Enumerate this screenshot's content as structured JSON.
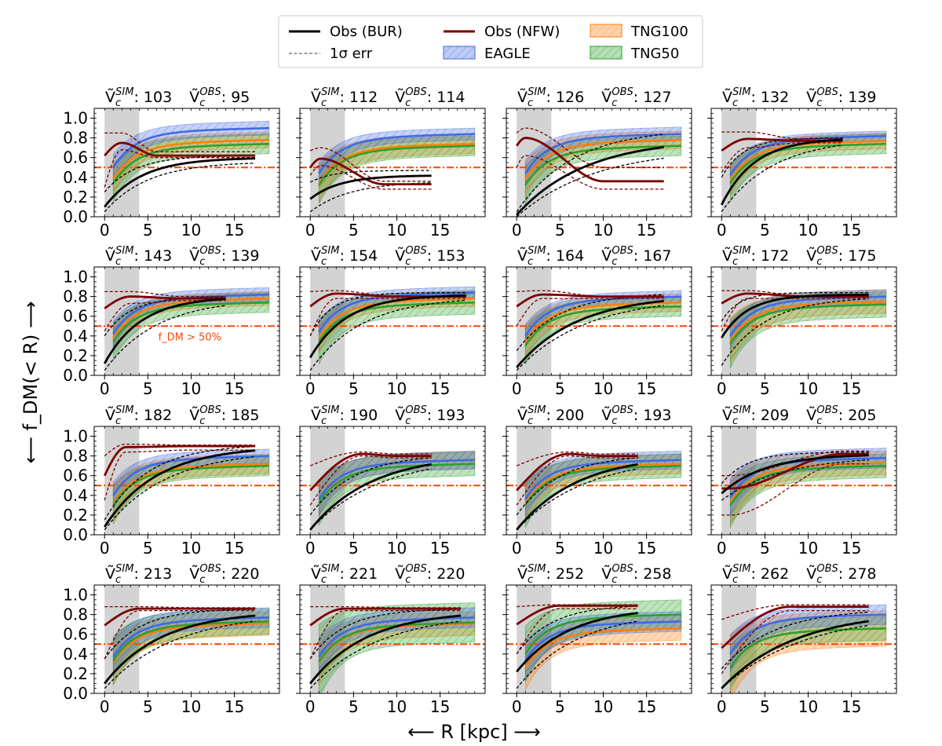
{
  "chart_data": {
    "type": "line",
    "figure": {
      "xlabel": "⟵  R [kpc]  ⟶",
      "ylabel": "⟵  f_DM(< R)  ⟶",
      "xlim": [
        -1.2,
        20.2
      ],
      "ylim": [
        0.0,
        1.1
      ],
      "xticks": [
        0,
        5,
        10,
        15
      ],
      "yticks": [
        0.0,
        0.2,
        0.4,
        0.6,
        0.8,
        1.0
      ],
      "ytick_labels": [
        "0.0",
        "0.2",
        "0.4",
        "0.6",
        "0.8",
        "1.0"
      ],
      "shaded_region_kpc": [
        0,
        4
      ],
      "threshold_line": 0.5,
      "threshold_annotation": "f_DM > 50%",
      "title_labels": {
        "sim": "Ṽc^SIM",
        "obs": "Ṽc^OBS"
      }
    },
    "legend": [
      {
        "key": "obs_bur",
        "label": "Obs (BUR)",
        "style": "line",
        "color": "#000000"
      },
      {
        "key": "obs_nfw",
        "label": "Obs (NFW)",
        "style": "line",
        "color": "#7b0000"
      },
      {
        "key": "tng100",
        "label": "TNG100",
        "style": "band",
        "color": "#ff7f0e"
      },
      {
        "key": "err",
        "label": "1σ err",
        "style": "dashed",
        "color": "#666666"
      },
      {
        "key": "eagle",
        "label": "EAGLE",
        "style": "band",
        "color": "#4169e1"
      },
      {
        "key": "tng50",
        "label": "TNG50",
        "style": "band",
        "color": "#2ca02c"
      }
    ],
    "colors": {
      "eagle": "#4169e1",
      "tng100": "#ff7f0e",
      "tng50": "#2ca02c",
      "obs_bur": "#000000",
      "obs_nfw": "#7b0000",
      "threshold": "#ff4500",
      "shade": "#d3d3d3"
    },
    "panels": [
      {
        "vsim": ": 103",
        "vobs": ": 95",
        "xmax": 17.5,
        "bur": [
          0.1,
          0.1,
          0.6,
          4.3
        ],
        "nfw": [
          0.62,
          0.05,
          0.75,
          2.0,
          0.62,
          6.0
        ],
        "bur_err": [
          [
            0.05,
            0.05,
            0.56,
            5.0
          ],
          [
            0.25,
            0.3,
            0.62,
            3.5
          ]
        ],
        "nfw_err": [
          [
            0.3,
            0.05,
            0.68,
            2.0,
            0.6,
            6.0
          ],
          [
            0.85,
            0.05,
            0.85,
            2.0,
            0.66,
            6.0
          ]
        ],
        "eagle": [
          0.9,
          0.07
        ],
        "tng100": [
          0.78,
          0.08
        ],
        "tng50": [
          0.74,
          0.1
        ]
      },
      {
        "vsim": ": 112",
        "vobs": ": 114",
        "xmax": 14.0,
        "bur": [
          0.18,
          0.18,
          0.42,
          3.4
        ],
        "nfw": [
          0.5,
          0.1,
          0.59,
          1.2,
          0.33,
          8.5
        ],
        "bur_err": [
          [
            0.05,
            0.05,
            0.36,
            4.6
          ],
          [
            0.35,
            0.35,
            0.47,
            2.5
          ]
        ],
        "nfw_err": [
          [
            0.42,
            0.1,
            0.52,
            1.2,
            0.28,
            8.5
          ],
          [
            0.67,
            0.1,
            0.7,
            1.2,
            0.36,
            8.5
          ]
        ],
        "eagle": [
          0.84,
          0.06
        ],
        "tng100": [
          0.74,
          0.1
        ],
        "tng50": [
          0.72,
          0.1
        ]
      },
      {
        "vsim": ": 126",
        "vobs": ": 127",
        "xmax": 17.0,
        "bur": [
          0.02,
          0.02,
          0.8,
          8.0
        ],
        "nfw": [
          0.72,
          0.05,
          0.8,
          1.0,
          0.36,
          10.0
        ],
        "bur_err": [
          [
            0.0,
            0.0,
            0.7,
            9.0
          ],
          [
            0.05,
            0.05,
            0.9,
            6.5
          ]
        ],
        "nfw_err": [
          [
            0.5,
            0.05,
            0.62,
            1.0,
            0.28,
            10.0
          ],
          [
            0.85,
            0.05,
            0.9,
            1.0,
            0.5,
            10.0
          ]
        ],
        "eagle": [
          0.84,
          0.07
        ],
        "tng100": [
          0.78,
          0.09
        ],
        "tng50": [
          0.72,
          0.1
        ]
      },
      {
        "vsim": ": 132",
        "vobs": ": 139",
        "xmax": 14.0,
        "bur": [
          0.12,
          0.12,
          0.8,
          3.8
        ],
        "nfw": [
          0.67,
          0.05,
          0.79,
          3.0,
          0.77,
          9.0
        ],
        "bur_err": [
          [
            0.05,
            0.05,
            0.8,
            6.0
          ],
          [
            0.4,
            0.4,
            0.8,
            2.5
          ]
        ],
        "nfw_err": [
          [
            0.45,
            0.05,
            0.7,
            3.0,
            0.75,
            9.0
          ],
          [
            0.86,
            0.05,
            0.86,
            3.0,
            0.79,
            9.0
          ]
        ],
        "eagle": [
          0.82,
          0.05
        ],
        "tng100": [
          0.77,
          0.08
        ],
        "tng50": [
          0.74,
          0.1
        ]
      },
      {
        "vsim": ": 143",
        "vobs": ": 139",
        "xmax": 14.0,
        "bur": [
          0.12,
          0.12,
          0.8,
          4.2
        ],
        "nfw": [
          0.68,
          0.05,
          0.8,
          3.0,
          0.78,
          9.0
        ],
        "bur_err": [
          [
            0.05,
            0.05,
            0.78,
            6.0
          ],
          [
            0.4,
            0.4,
            0.8,
            3.0
          ]
        ],
        "nfw_err": [
          [
            0.45,
            0.05,
            0.73,
            3.0,
            0.76,
            9.0
          ],
          [
            0.85,
            0.05,
            0.85,
            3.0,
            0.8,
            9.0
          ]
        ],
        "eagle": [
          0.82,
          0.07
        ],
        "tng100": [
          0.78,
          0.07
        ],
        "tng50": [
          0.74,
          0.1
        ],
        "annotate": true
      },
      {
        "vsim": ": 154",
        "vobs": ": 153",
        "xmax": 18.0,
        "bur": [
          0.18,
          0.18,
          0.82,
          4.2
        ],
        "nfw": [
          0.7,
          0.05,
          0.83,
          3.0,
          0.8,
          10.0
        ],
        "bur_err": [
          [
            0.05,
            0.05,
            0.8,
            6.0
          ],
          [
            0.4,
            0.4,
            0.84,
            2.5
          ]
        ],
        "nfw_err": [
          [
            0.4,
            0.05,
            0.78,
            3.0,
            0.78,
            10.0
          ],
          [
            0.85,
            0.05,
            0.86,
            3.0,
            0.8,
            10.0
          ]
        ],
        "eagle": [
          0.84,
          0.06
        ],
        "tng100": [
          0.78,
          0.08
        ],
        "tng50": [
          0.74,
          0.12
        ]
      },
      {
        "vsim": ": 164",
        "vobs": ": 167",
        "xmax": 17.0,
        "bur": [
          0.08,
          0.08,
          0.82,
          7.0
        ],
        "nfw": [
          0.7,
          0.05,
          0.82,
          3.0,
          0.8,
          10.0
        ],
        "bur_err": [
          [
            0.05,
            0.05,
            0.8,
            8.0
          ],
          [
            0.25,
            0.25,
            0.84,
            5.0
          ]
        ],
        "nfw_err": [
          [
            0.5,
            0.05,
            0.78,
            3.0,
            0.78,
            10.0
          ],
          [
            0.85,
            0.05,
            0.86,
            3.0,
            0.8,
            10.0
          ]
        ],
        "eagle": [
          0.8,
          0.06
        ],
        "tng100": [
          0.74,
          0.09
        ],
        "tng50": [
          0.7,
          0.1
        ]
      },
      {
        "vsim": ": 172",
        "vobs": ": 175",
        "xmax": 17.0,
        "bur": [
          0.38,
          0.38,
          0.82,
          3.0
        ],
        "nfw": [
          0.73,
          0.05,
          0.83,
          3.0,
          0.8,
          10.0
        ],
        "bur_err": [
          [
            0.1,
            0.1,
            0.8,
            5.0
          ],
          [
            0.55,
            0.55,
            0.84,
            2.0
          ]
        ],
        "nfw_err": [
          [
            0.45,
            0.05,
            0.78,
            3.0,
            0.78,
            10.0
          ],
          [
            0.86,
            0.05,
            0.86,
            3.0,
            0.8,
            10.0
          ]
        ],
        "eagle": [
          0.8,
          0.07
        ],
        "tng100": [
          0.75,
          0.12
        ],
        "tng50": [
          0.72,
          0.13
        ]
      },
      {
        "vsim": ": 182",
        "vobs": ": 185",
        "xmax": 17.5,
        "bur": [
          0.08,
          0.08,
          0.9,
          6.0
        ],
        "nfw": [
          0.6,
          0.05,
          0.89,
          2.5,
          0.9,
          10.0
        ],
        "bur_err": [
          [
            0.05,
            0.05,
            0.86,
            7.0
          ],
          [
            0.15,
            0.15,
            0.92,
            5.0
          ]
        ],
        "nfw_err": [
          [
            0.35,
            0.05,
            0.84,
            2.5,
            0.86,
            10.0
          ],
          [
            0.8,
            0.05,
            0.92,
            2.5,
            0.91,
            10.0
          ]
        ],
        "eagle": [
          0.8,
          0.07
        ],
        "tng100": [
          0.72,
          0.1
        ],
        "tng50": [
          0.7,
          0.1
        ]
      },
      {
        "vsim": ": 190",
        "vobs": ": 193",
        "xmax": 14.0,
        "bur": [
          0.05,
          0.05,
          0.82,
          7.0
        ],
        "nfw": [
          0.45,
          0.05,
          0.82,
          6.0,
          0.8,
          10.0
        ],
        "bur_err": [
          [
            0.05,
            0.05,
            0.8,
            8.0
          ],
          [
            0.2,
            0.2,
            0.82,
            5.0
          ]
        ],
        "nfw_err": [
          [
            0.3,
            0.05,
            0.8,
            6.0,
            0.78,
            10.0
          ],
          [
            0.7,
            0.05,
            0.84,
            6.0,
            0.82,
            10.0
          ]
        ],
        "eagle": [
          0.76,
          0.09
        ],
        "tng100": [
          0.76,
          0.09
        ],
        "tng50": [
          0.72,
          0.12
        ]
      },
      {
        "vsim": ": 200",
        "vobs": ": 193",
        "xmax": 14.0,
        "bur": [
          0.05,
          0.05,
          0.82,
          7.0
        ],
        "nfw": [
          0.45,
          0.05,
          0.82,
          6.0,
          0.8,
          10.0
        ],
        "bur_err": [
          [
            0.05,
            0.05,
            0.8,
            8.0
          ],
          [
            0.2,
            0.2,
            0.82,
            5.0
          ]
        ],
        "nfw_err": [
          [
            0.3,
            0.05,
            0.8,
            6.0,
            0.78,
            10.0
          ],
          [
            0.7,
            0.05,
            0.84,
            6.0,
            0.82,
            10.0
          ]
        ],
        "eagle": [
          0.76,
          0.09
        ],
        "tng100": [
          0.72,
          0.1
        ],
        "tng50": [
          0.7,
          0.12
        ]
      },
      {
        "vsim": ": 209",
        "vobs": ": 205",
        "xmax": 17.0,
        "bur": [
          0.42,
          0.42,
          0.82,
          5.0
        ],
        "nfw": [
          0.47,
          0.05,
          0.47,
          1.0,
          0.82,
          14.0
        ],
        "bur_err": [
          [
            0.35,
            0.35,
            0.8,
            7.0
          ],
          [
            0.52,
            0.52,
            0.84,
            3.0
          ]
        ],
        "nfw_err": [
          [
            0.2,
            0.05,
            0.2,
            1.0,
            0.72,
            14.0
          ],
          [
            0.6,
            0.05,
            0.6,
            1.0,
            0.85,
            14.0
          ]
        ],
        "eagle": [
          0.78,
          0.1
        ],
        "tng100": [
          0.73,
          0.12
        ],
        "tng50": [
          0.7,
          0.12
        ]
      },
      {
        "vsim": ": 213",
        "vobs": ": 220",
        "xmax": 17.5,
        "bur": [
          0.1,
          0.1,
          0.84,
          6.5
        ],
        "nfw": [
          0.69,
          0.05,
          0.86,
          4.0,
          0.86,
          10.0
        ],
        "bur_err": [
          [
            0.05,
            0.05,
            0.82,
            8.0
          ],
          [
            0.35,
            0.35,
            0.86,
            4.0
          ]
        ],
        "nfw_err": [
          [
            0.35,
            0.05,
            0.84,
            4.0,
            0.84,
            10.0
          ],
          [
            0.88,
            0.05,
            0.88,
            4.0,
            0.87,
            10.0
          ]
        ],
        "eagle": [
          0.77,
          0.1
        ],
        "tng100": [
          0.71,
          0.12
        ],
        "tng50": [
          0.73,
          0.13
        ]
      },
      {
        "vsim": ": 221",
        "vobs": ": 220",
        "xmax": 17.5,
        "bur": [
          0.1,
          0.1,
          0.84,
          6.5
        ],
        "nfw": [
          0.69,
          0.05,
          0.86,
          4.0,
          0.86,
          10.0
        ],
        "bur_err": [
          [
            0.05,
            0.05,
            0.82,
            8.0
          ],
          [
            0.35,
            0.35,
            0.86,
            4.0
          ]
        ],
        "nfw_err": [
          [
            0.35,
            0.05,
            0.84,
            4.0,
            0.84,
            10.0
          ],
          [
            0.88,
            0.05,
            0.88,
            4.0,
            0.87,
            10.0
          ]
        ],
        "eagle": [
          0.77,
          0.1
        ],
        "tng100": [
          0.71,
          0.12
        ],
        "tng50": [
          0.72,
          0.2
        ]
      },
      {
        "vsim": ": 252",
        "vobs": ": 258",
        "xmax": 14.0,
        "bur": [
          0.22,
          0.22,
          0.88,
          6.0
        ],
        "nfw": [
          0.7,
          0.05,
          0.89,
          5.0,
          0.89,
          10.0
        ],
        "bur_err": [
          [
            0.05,
            0.05,
            0.84,
            7.0
          ],
          [
            0.4,
            0.4,
            0.9,
            4.0
          ]
        ],
        "nfw_err": [
          [
            0.4,
            0.05,
            0.86,
            5.0,
            0.86,
            10.0
          ],
          [
            0.88,
            0.05,
            0.9,
            5.0,
            0.9,
            10.0
          ]
        ],
        "eagle": [
          0.73,
          0.1
        ],
        "tng100": [
          0.66,
          0.12
        ],
        "tng50": [
          0.8,
          0.15
        ]
      },
      {
        "vsim": ": 262",
        "vobs": ": 278",
        "xmax": 17.0,
        "bur": [
          0.05,
          0.05,
          0.84,
          8.5
        ],
        "nfw": [
          0.46,
          0.05,
          0.88,
          8.0,
          0.88,
          10.0
        ],
        "bur_err": [
          [
            0.05,
            0.05,
            0.82,
            9.5
          ],
          [
            0.25,
            0.25,
            0.86,
            6.0
          ]
        ],
        "nfw_err": [
          [
            0.2,
            0.05,
            0.84,
            8.0,
            0.84,
            10.0
          ],
          [
            0.75,
            0.05,
            0.9,
            8.0,
            0.9,
            10.0
          ]
        ],
        "eagle": [
          0.8,
          0.1
        ],
        "tng100": [
          0.66,
          0.18
        ],
        "tng50": [
          0.66,
          0.12
        ]
      }
    ]
  }
}
